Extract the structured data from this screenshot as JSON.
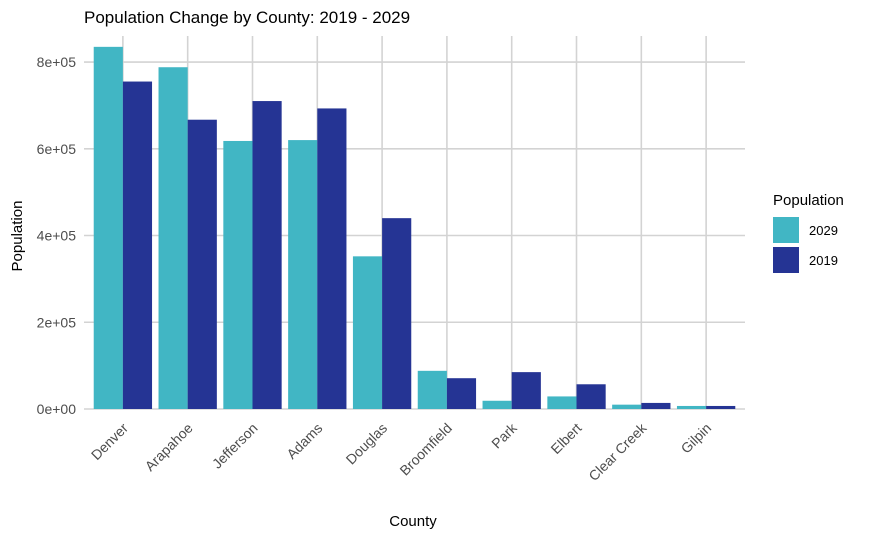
{
  "chart_data": {
    "type": "bar",
    "title": "Population Change by County: 2019 - 2029",
    "xlabel": "County",
    "ylabel": "Population",
    "categories": [
      "Denver",
      "Arapahoe",
      "Jefferson",
      "Adams",
      "Douglas",
      "Broomfield",
      "Park",
      "Elbert",
      "Clear Creek",
      "Gilpin"
    ],
    "series": [
      {
        "name": "2029",
        "color": "#41b6c4",
        "values": [
          835000,
          788000,
          618000,
          620000,
          352000,
          88000,
          19000,
          29000,
          10000,
          7000
        ]
      },
      {
        "name": "2019",
        "color": "#253494",
        "values": [
          755000,
          667000,
          710000,
          693000,
          440000,
          71000,
          85000,
          57000,
          14000,
          7000
        ]
      }
    ],
    "ylim": [
      0,
      860000
    ],
    "yticks": [
      {
        "value": 0,
        "label": "0e+00"
      },
      {
        "value": 200000,
        "label": "2e+05"
      },
      {
        "value": 400000,
        "label": "4e+05"
      },
      {
        "value": 600000,
        "label": "6e+05"
      },
      {
        "value": 800000,
        "label": "8e+05"
      }
    ],
    "legend": {
      "title": "Population",
      "position": "right"
    },
    "grid": true
  }
}
